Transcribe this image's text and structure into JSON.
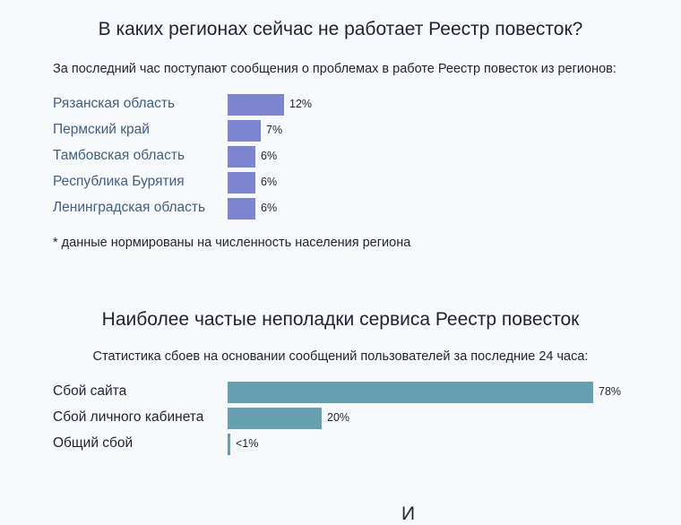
{
  "regions": {
    "title": "В каких регионах сейчас не работает Реестр повесток?",
    "subtitle": "За последний час поступают сообщения о проблемах в работе Реестр повесток из регионов:",
    "items": [
      {
        "label": "Рязанская область",
        "value": 12,
        "value_label": "12%"
      },
      {
        "label": "Пермский край",
        "value": 7,
        "value_label": "7%"
      },
      {
        "label": "Тамбовская область",
        "value": 6,
        "value_label": "6%"
      },
      {
        "label": "Республика Бурятия",
        "value": 6,
        "value_label": "6%"
      },
      {
        "label": "Ленинградская область",
        "value": 6,
        "value_label": "6%"
      }
    ],
    "note": "* данные нормированы на численность населения региона",
    "bar_color": "#7e85cf"
  },
  "issues": {
    "title": "Наиболее частые неполадки сервиса Реестр повесток",
    "subtitle": "Статистика сбоев на основании сообщений пользователей за последние 24 часа:",
    "items": [
      {
        "label": "Сбой сайта",
        "value": 78,
        "value_label": "78%"
      },
      {
        "label": "Сбой личного кабинета",
        "value": 20,
        "value_label": "20%"
      },
      {
        "label": "Общий сбой",
        "value": 0.5,
        "value_label": "<1%"
      }
    ],
    "bar_color": "#689fae"
  },
  "next_section": {
    "title_fragment": "И"
  }
}
